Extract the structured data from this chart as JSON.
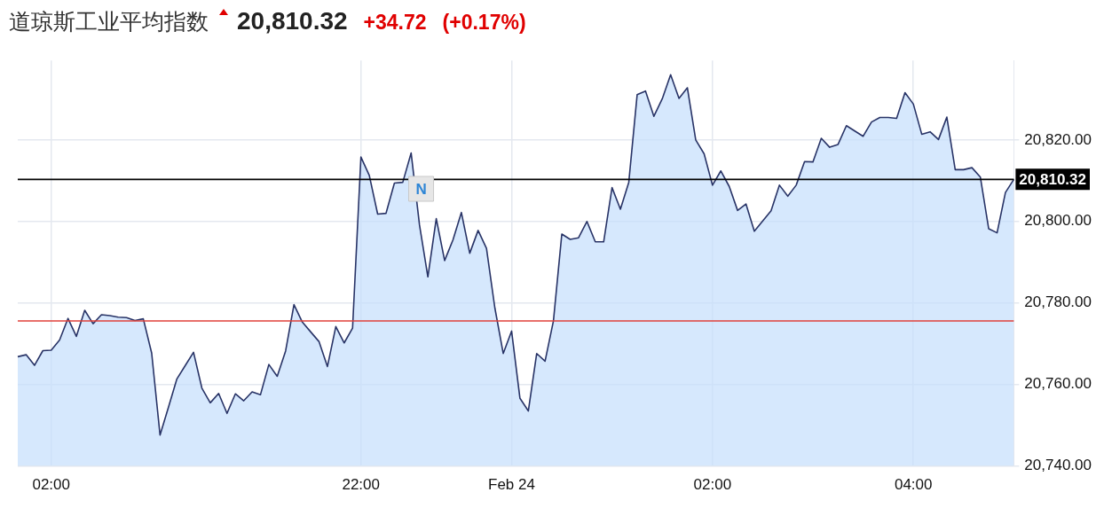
{
  "chart_data": {
    "type": "area",
    "title": "道琼斯工业平均指数",
    "annotations": [
      "20,810.32",
      "+34.72",
      "(+0.17%)",
      {
        "text": "N",
        "y": 20808
      }
    ],
    "categories": [
      null,
      null,
      null,
      null,
      "02:00",
      null,
      null,
      null,
      null,
      null,
      null,
      null,
      null,
      null,
      null,
      null,
      null,
      null,
      null,
      null,
      null,
      null,
      null,
      null,
      null,
      null,
      null,
      null,
      null,
      null,
      null,
      null,
      null,
      null,
      null,
      null,
      null,
      null,
      null,
      null,
      null,
      "22:00",
      null,
      null,
      null,
      null,
      null,
      null,
      null,
      null,
      null,
      null,
      null,
      null,
      null,
      null,
      null,
      null,
      null,
      "Feb 24",
      null,
      null,
      null,
      null,
      null,
      null,
      null,
      null,
      null,
      null,
      null,
      null,
      null,
      null,
      null,
      null,
      null,
      null,
      null,
      null,
      null,
      null,
      null,
      "02:00",
      null,
      null,
      null,
      null,
      null,
      null,
      null,
      null,
      null,
      null,
      null,
      null,
      null,
      null,
      null,
      null,
      null,
      null,
      null,
      null,
      null,
      null,
      null,
      "04:00",
      null,
      null,
      null,
      null,
      null,
      null,
      null,
      null,
      null,
      null,
      null,
      null
    ],
    "series": [
      {
        "color": "#283366",
        "values": [
          20766.8,
          20767.3,
          20764.7,
          20768.3,
          20768.4,
          20770.9,
          20776.2,
          20771.8,
          20778.2,
          20774.9,
          20777.1,
          20776.9,
          20776.5,
          20776.4,
          20775.7,
          20776.1,
          20767.7,
          20747.6,
          20754.4,
          20761.3,
          20764.6,
          20767.9,
          20759.1,
          20755.5,
          20757.8,
          20752.9,
          20757.7,
          20756.0,
          20758.2,
          20757.5,
          20764.9,
          20762.0,
          20768.2,
          20779.6,
          20775.3,
          20772.9,
          20770.5,
          20764.4,
          20774.2,
          20770.2,
          20773.8,
          20815.8,
          20811.3,
          20801.8,
          20802.0,
          20809.4,
          20809.6,
          20816.8,
          20799.1,
          20786.4,
          20800.7,
          20790.4,
          20795.5,
          20802.2,
          20792.2,
          20797.8,
          20793.4,
          20778.8,
          20767.6,
          20773.1,
          20756.6,
          20753.5,
          20767.6,
          20765.7,
          20775.6,
          20796.9,
          20795.6,
          20796.0,
          20800.0,
          20795.0,
          20795.0,
          20808.3,
          20803.0,
          20809.6,
          20831.1,
          20832.0,
          20825.8,
          20830.1,
          20836.0,
          20830.2,
          20832.8,
          20820.0,
          20816.6,
          20808.9,
          20812.4,
          20808.6,
          20802.7,
          20804.3,
          20797.6,
          20800.1,
          20802.6,
          20808.9,
          20806.2,
          20808.9,
          20814.7,
          20814.6,
          20820.4,
          20818.2,
          20818.9,
          20823.5,
          20822.2,
          20820.9,
          20824.4,
          20825.5,
          20825.5,
          20825.3,
          20831.6,
          20828.8,
          20821.4,
          20822.0,
          20820.1,
          20825.6,
          20812.7,
          20812.7,
          20813.2,
          20810.9,
          20798.2,
          20797.2,
          20807.1,
          20810.32
        ]
      }
    ],
    "ylim": [
      20740,
      20839.5
    ],
    "yticks": [
      {
        "value": 20740,
        "label": "20,740.00"
      },
      {
        "value": 20760,
        "label": "20,760.00"
      },
      {
        "value": 20780,
        "label": "20,780.00"
      },
      {
        "value": 20800,
        "label": "20,800.00"
      },
      {
        "value": 20820,
        "label": "20,820.00"
      }
    ],
    "ref_lines": [
      {
        "axis": "y",
        "value": 20810.32,
        "label": "20,810.32",
        "color": "#000000"
      },
      {
        "axis": "y",
        "value": 20775.6,
        "color": "#e0413a"
      }
    ],
    "grid": true,
    "legend": false,
    "marker": "none",
    "line_style": "solid"
  }
}
